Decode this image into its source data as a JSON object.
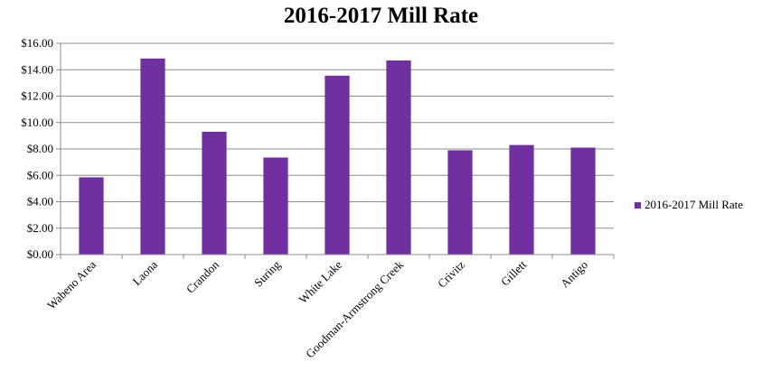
{
  "chart_data": {
    "type": "bar",
    "title": "2016-2017 Mill Rate",
    "xlabel": "",
    "ylabel": "",
    "categories": [
      "Wabeno Area",
      "Laona",
      "Crandon",
      "Suring",
      "White Lake",
      "Goodman-Armstrong Creek",
      "Crivitz",
      "Gillett",
      "Antigo"
    ],
    "series": [
      {
        "name": "2016-2017 Mill Rate",
        "values": [
          5.85,
          14.85,
          9.3,
          7.35,
          13.55,
          14.7,
          7.9,
          8.3,
          8.1
        ]
      }
    ],
    "ylim": [
      0,
      16
    ],
    "yticks": [
      "$0.00",
      "$2.00",
      "$4.00",
      "$6.00",
      "$8.00",
      "$10.00",
      "$12.00",
      "$14.00",
      "$16.00"
    ],
    "grid": true,
    "legend_position": "right",
    "bar_color": "#7030a0"
  }
}
